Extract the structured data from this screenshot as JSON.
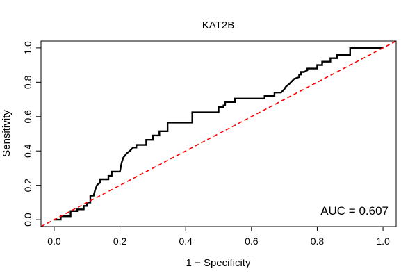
{
  "chart_data": {
    "type": "line",
    "title": "KAT2B",
    "xlabel": "1 − Specificity",
    "ylabel": "Sensitivity",
    "xlim": [
      -0.04,
      1.04
    ],
    "ylim": [
      -0.04,
      1.04
    ],
    "xticks": [
      0.0,
      0.2,
      0.4,
      0.6,
      0.8,
      1.0
    ],
    "xtick_labels": [
      "0.0",
      "0.2",
      "0.4",
      "0.6",
      "0.8",
      "1.0"
    ],
    "yticks": [
      0.0,
      0.2,
      0.4,
      0.6,
      0.8,
      1.0
    ],
    "ytick_labels": [
      "0.0",
      "0.2",
      "0.4",
      "0.6",
      "0.8",
      "1.0"
    ],
    "grid": false,
    "annotation": "AUC = 0.607",
    "series": [
      {
        "role": "roc-curve",
        "color": "#000000",
        "x": [
          0.0,
          0.02,
          0.02,
          0.05,
          0.05,
          0.07,
          0.07,
          0.09,
          0.09,
          0.1,
          0.1,
          0.11,
          0.11,
          0.12,
          0.125,
          0.13,
          0.135,
          0.14,
          0.14,
          0.165,
          0.165,
          0.175,
          0.175,
          0.2,
          0.205,
          0.21,
          0.22,
          0.23,
          0.24,
          0.25,
          0.25,
          0.28,
          0.28,
          0.3,
          0.3,
          0.32,
          0.32,
          0.345,
          0.345,
          0.42,
          0.42,
          0.5,
          0.5,
          0.515,
          0.515,
          0.52,
          0.52,
          0.55,
          0.55,
          0.64,
          0.64,
          0.67,
          0.67,
          0.69,
          0.7,
          0.705,
          0.715,
          0.72,
          0.725,
          0.73,
          0.745,
          0.745,
          0.75,
          0.75,
          0.76,
          0.77,
          0.77,
          0.8,
          0.8,
          0.815,
          0.815,
          0.84,
          0.84,
          0.86,
          0.86,
          0.9,
          0.9,
          1.0
        ],
        "y": [
          0.0,
          0.0,
          0.02,
          0.02,
          0.05,
          0.05,
          0.06,
          0.06,
          0.08,
          0.08,
          0.1,
          0.1,
          0.14,
          0.14,
          0.175,
          0.2,
          0.21,
          0.215,
          0.235,
          0.235,
          0.255,
          0.255,
          0.28,
          0.28,
          0.33,
          0.36,
          0.385,
          0.4,
          0.42,
          0.42,
          0.435,
          0.435,
          0.465,
          0.465,
          0.49,
          0.49,
          0.515,
          0.515,
          0.565,
          0.565,
          0.625,
          0.625,
          0.655,
          0.655,
          0.665,
          0.665,
          0.685,
          0.685,
          0.705,
          0.705,
          0.72,
          0.72,
          0.74,
          0.74,
          0.76,
          0.775,
          0.79,
          0.8,
          0.81,
          0.82,
          0.83,
          0.845,
          0.845,
          0.86,
          0.86,
          0.87,
          0.88,
          0.88,
          0.9,
          0.9,
          0.92,
          0.92,
          0.94,
          0.94,
          0.96,
          0.96,
          1.0,
          1.0
        ]
      },
      {
        "role": "reference-diagonal",
        "color": "#ff0000",
        "dashed": true,
        "x": [
          -0.04,
          1.04
        ],
        "y": [
          -0.04,
          1.04
        ]
      }
    ]
  }
}
